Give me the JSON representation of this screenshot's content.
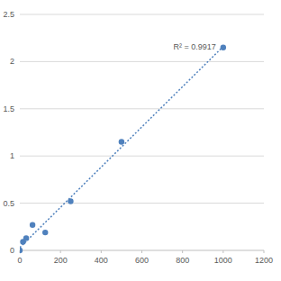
{
  "chart_data": {
    "type": "scatter",
    "series": [
      {
        "type": "scatter",
        "marker": "circle",
        "color": "#4f81bd",
        "x": [
          0,
          15.6,
          31.25,
          62.5,
          125,
          250,
          500,
          1000
        ],
        "values": [
          0.0,
          0.09,
          0.13,
          0.27,
          0.19,
          0.52,
          1.15,
          2.15
        ]
      },
      {
        "type": "line",
        "line_style": "dotted",
        "color": "#4f81bd",
        "x": [
          0,
          1000
        ],
        "values": [
          0.03,
          2.16
        ]
      }
    ],
    "annotations": [
      {
        "text": "R² = 0.9917"
      }
    ],
    "xlim": [
      0,
      1200
    ],
    "xticks": [
      0,
      200,
      400,
      600,
      800,
      1000,
      1200
    ],
    "ylim": [
      0,
      2.5
    ],
    "yticks": [
      0,
      0.5,
      1,
      1.5,
      2,
      2.5
    ],
    "grid": true
  }
}
